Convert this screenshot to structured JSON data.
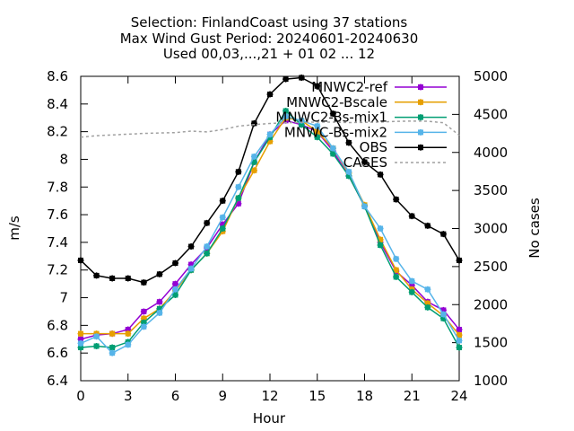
{
  "chart_data": {
    "type": "line",
    "title_lines": [
      "Selection: FinlandCoast using    37 stations",
      "Max Wind Gust   Period: 20240601-20240630",
      "Used 00,03,...,21 + 01 02 ... 12"
    ],
    "xlabel": "Hour",
    "ylabel": "m/s",
    "y2label": "No cases",
    "xlim": [
      0,
      24
    ],
    "ylim": [
      6.4,
      8.6
    ],
    "y2lim": [
      1000,
      5000
    ],
    "x_ticks": [
      0,
      3,
      6,
      9,
      12,
      15,
      18,
      21,
      24
    ],
    "x_tick_labels": [
      "0",
      "3",
      "6",
      "9",
      "12",
      "15",
      "18",
      "21",
      "24"
    ],
    "y_ticks": [
      6.4,
      6.6,
      6.8,
      7.0,
      7.2,
      7.4,
      7.6,
      7.8,
      8.0,
      8.2,
      8.4,
      8.6
    ],
    "y_tick_labels": [
      "6.4",
      "6.6",
      "6.8",
      "7",
      "7.2",
      "7.4",
      "7.6",
      "7.8",
      "8",
      "8.2",
      "8.4",
      "8.6"
    ],
    "y2_ticks": [
      1000,
      1500,
      2000,
      2500,
      3000,
      3500,
      4000,
      4500,
      5000
    ],
    "y2_tick_labels": [
      "1000",
      "1500",
      "2000",
      "2500",
      "3000",
      "3500",
      "4000",
      "4500",
      "5000"
    ],
    "grid": false,
    "legend_position": "top-right",
    "x": [
      0,
      1,
      2,
      3,
      4,
      5,
      6,
      7,
      8,
      9,
      10,
      11,
      12,
      13,
      14,
      15,
      16,
      17,
      18,
      19,
      20,
      21,
      22,
      23,
      24
    ],
    "series": [
      {
        "name": "MNWC2-ref",
        "color": "#9400d3",
        "marker": "plus",
        "axis": "left",
        "values": [
          6.7,
          6.73,
          6.74,
          6.77,
          6.9,
          6.97,
          7.1,
          7.24,
          7.36,
          7.53,
          7.68,
          7.98,
          8.18,
          8.28,
          8.25,
          8.2,
          8.06,
          7.88,
          7.66,
          7.4,
          7.19,
          7.09,
          6.97,
          6.91,
          6.77
        ]
      },
      {
        "name": "MNWC2-Bscale",
        "color": "#e69f00",
        "marker": "plus",
        "axis": "left",
        "values": [
          6.74,
          6.74,
          6.74,
          6.74,
          6.85,
          6.92,
          7.05,
          7.2,
          7.32,
          7.48,
          7.72,
          7.92,
          8.13,
          8.3,
          8.28,
          8.2,
          8.08,
          7.9,
          7.67,
          7.42,
          7.2,
          7.06,
          6.96,
          6.87,
          6.73
        ]
      },
      {
        "name": "MNWC2-Bs-mix1",
        "color": "#009e73",
        "marker": "plus",
        "axis": "left",
        "values": [
          6.64,
          6.65,
          6.64,
          6.68,
          6.82,
          6.92,
          7.02,
          7.2,
          7.32,
          7.5,
          7.72,
          7.98,
          8.16,
          8.35,
          8.25,
          8.16,
          8.04,
          7.88,
          7.66,
          7.38,
          7.15,
          7.04,
          6.93,
          6.85,
          6.64
        ]
      },
      {
        "name": "MNWC-Bs-mix2",
        "color": "#56b4e9",
        "marker": "plus",
        "axis": "left",
        "values": [
          6.67,
          6.72,
          6.6,
          6.66,
          6.79,
          6.89,
          7.06,
          7.21,
          7.37,
          7.58,
          7.8,
          8.02,
          8.18,
          8.31,
          8.28,
          8.24,
          8.08,
          7.91,
          7.66,
          7.5,
          7.28,
          7.12,
          7.06,
          6.88,
          6.69
        ]
      },
      {
        "name": "OBS",
        "color": "#000000",
        "marker": "plus",
        "axis": "left",
        "values": [
          7.27,
          7.16,
          7.14,
          7.14,
          7.11,
          7.17,
          7.25,
          7.37,
          7.54,
          7.7,
          7.91,
          8.26,
          8.47,
          8.58,
          8.59,
          8.53,
          8.33,
          8.12,
          7.98,
          7.89,
          7.71,
          7.59,
          7.52,
          7.46,
          7.27
        ]
      },
      {
        "name": "CASES",
        "color": "#a0a0a0",
        "marker": "none",
        "dash": true,
        "axis": "right",
        "values": [
          4200,
          4220,
          4230,
          4240,
          4250,
          4255,
          4260,
          4280,
          4270,
          4300,
          4345,
          4365,
          4380,
          4390,
          4395,
          4400,
          4398,
          4392,
          4395,
          4400,
          4408,
          4412,
          4410,
          4390,
          4225
        ]
      }
    ]
  }
}
